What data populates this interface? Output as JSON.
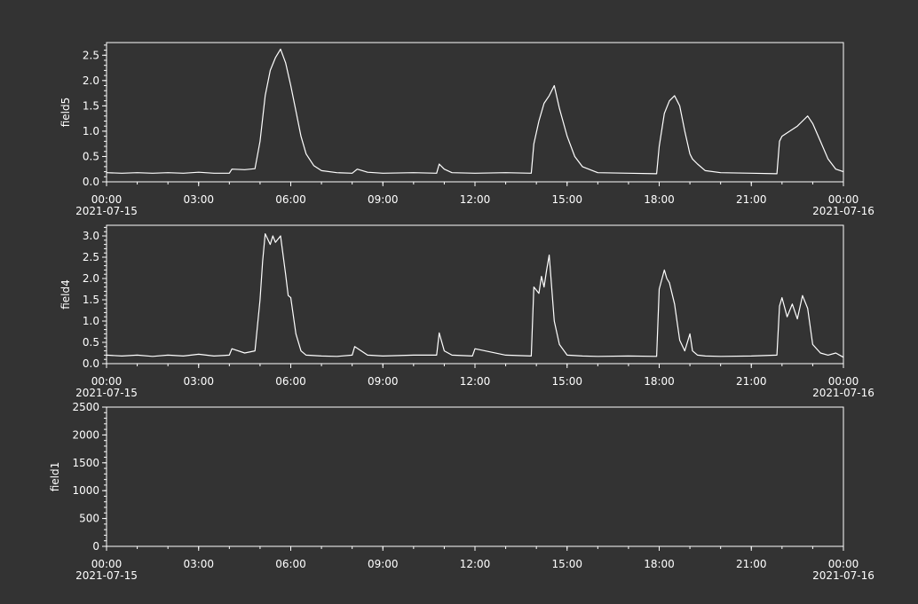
{
  "colors": {
    "background": "#333333",
    "plot_background": "#333333",
    "axes": "#ffffff",
    "line": "#ffffff",
    "text": "#ffffff"
  },
  "chart_data": [
    {
      "type": "line",
      "ylabel": "field5",
      "xlabel": "",
      "x_range": [
        "2021-07-15 00:00",
        "2021-07-16 00:00"
      ],
      "ylim": [
        0,
        2.75
      ],
      "y_ticks": [
        "0.0",
        "0.5",
        "1.0",
        "1.5",
        "2.0",
        "2.5"
      ],
      "y_tick_values": [
        0,
        0.5,
        1.0,
        1.5,
        2.0,
        2.5
      ],
      "x_tick_labels": [
        "00:00",
        "03:00",
        "06:00",
        "09:00",
        "12:00",
        "15:00",
        "18:00",
        "21:00",
        "00:00"
      ],
      "x_date_labels": [
        "2021-07-15",
        "2021-07-16"
      ],
      "grid": false,
      "series": [
        {
          "x": [
            "00:00",
            "00:30",
            "01:00",
            "01:30",
            "02:00",
            "02:30",
            "03:00",
            "03:30",
            "04:00",
            "04:05",
            "04:30",
            "04:50",
            "05:00",
            "05:10",
            "05:20",
            "05:30",
            "05:40",
            "05:50",
            "06:00",
            "06:10",
            "06:20",
            "06:30",
            "06:45",
            "07:00",
            "07:30",
            "08:00",
            "08:10",
            "08:30",
            "09:00",
            "10:00",
            "10:45",
            "10:50",
            "11:00",
            "11:15",
            "12:00",
            "13:00",
            "13:50",
            "13:55",
            "14:05",
            "14:15",
            "14:25",
            "14:35",
            "14:45",
            "15:00",
            "15:15",
            "15:30",
            "16:00",
            "17:00",
            "17:55",
            "18:00",
            "18:10",
            "18:20",
            "18:30",
            "18:40",
            "18:50",
            "19:00",
            "19:05",
            "19:15",
            "19:30",
            "20:00",
            "21:00",
            "21:50",
            "21:55",
            "22:00",
            "22:15",
            "22:30",
            "22:40",
            "22:50",
            "23:00",
            "23:15",
            "23:30",
            "23:45",
            "24:00"
          ],
          "y": [
            0.18,
            0.17,
            0.18,
            0.17,
            0.18,
            0.17,
            0.19,
            0.17,
            0.17,
            0.25,
            0.24,
            0.26,
            0.8,
            1.7,
            2.2,
            2.45,
            2.62,
            2.35,
            1.9,
            1.4,
            0.9,
            0.55,
            0.32,
            0.22,
            0.18,
            0.17,
            0.25,
            0.19,
            0.17,
            0.18,
            0.17,
            0.35,
            0.25,
            0.18,
            0.17,
            0.18,
            0.17,
            0.75,
            1.2,
            1.55,
            1.7,
            1.9,
            1.45,
            0.9,
            0.5,
            0.3,
            0.18,
            0.17,
            0.16,
            0.7,
            1.35,
            1.6,
            1.7,
            1.5,
            1.0,
            0.55,
            0.45,
            0.35,
            0.22,
            0.18,
            0.17,
            0.16,
            0.8,
            0.9,
            1.0,
            1.1,
            1.2,
            1.3,
            1.15,
            0.8,
            0.45,
            0.25,
            0.2
          ]
        }
      ]
    },
    {
      "type": "line",
      "ylabel": "field4",
      "xlabel": "",
      "x_range": [
        "2021-07-15 00:00",
        "2021-07-16 00:00"
      ],
      "ylim": [
        0,
        3.25
      ],
      "y_ticks": [
        "0.0",
        "0.5",
        "1.0",
        "1.5",
        "2.0",
        "2.5",
        "3.0"
      ],
      "y_tick_values": [
        0,
        0.5,
        1.0,
        1.5,
        2.0,
        2.5,
        3.0
      ],
      "x_tick_labels": [
        "00:00",
        "03:00",
        "06:00",
        "09:00",
        "12:00",
        "15:00",
        "18:00",
        "21:00",
        "00:00"
      ],
      "x_date_labels": [
        "2021-07-15",
        "2021-07-16"
      ],
      "grid": false,
      "series": [
        {
          "x": [
            "00:00",
            "00:30",
            "01:00",
            "01:30",
            "02:00",
            "02:30",
            "03:00",
            "03:30",
            "04:00",
            "04:05",
            "04:30",
            "04:50",
            "05:00",
            "05:05",
            "05:10",
            "05:20",
            "05:25",
            "05:30",
            "05:40",
            "05:50",
            "05:55",
            "06:00",
            "06:10",
            "06:20",
            "06:30",
            "07:00",
            "07:30",
            "08:00",
            "08:05",
            "08:30",
            "09:00",
            "10:00",
            "10:45",
            "10:50",
            "11:00",
            "11:15",
            "11:55",
            "12:00",
            "13:00",
            "13:50",
            "13:55",
            "14:05",
            "14:10",
            "14:15",
            "14:20",
            "14:25",
            "14:35",
            "14:45",
            "15:00",
            "15:30",
            "16:00",
            "17:00",
            "17:55",
            "18:00",
            "18:10",
            "18:15",
            "18:20",
            "18:30",
            "18:40",
            "18:50",
            "19:00",
            "19:05",
            "19:15",
            "19:30",
            "20:00",
            "21:00",
            "21:50",
            "21:55",
            "22:00",
            "22:10",
            "22:20",
            "22:30",
            "22:40",
            "22:50",
            "23:00",
            "23:15",
            "23:30",
            "23:45",
            "24:00"
          ],
          "y": [
            0.2,
            0.18,
            0.2,
            0.17,
            0.2,
            0.18,
            0.22,
            0.18,
            0.2,
            0.35,
            0.25,
            0.3,
            1.5,
            2.4,
            3.05,
            2.8,
            3.0,
            2.85,
            3.0,
            2.1,
            1.6,
            1.55,
            0.7,
            0.3,
            0.2,
            0.18,
            0.17,
            0.2,
            0.4,
            0.2,
            0.18,
            0.2,
            0.2,
            0.72,
            0.3,
            0.2,
            0.18,
            0.35,
            0.2,
            0.18,
            1.8,
            1.65,
            2.05,
            1.8,
            2.2,
            2.55,
            1.0,
            0.45,
            0.2,
            0.18,
            0.17,
            0.18,
            0.17,
            1.75,
            2.2,
            2.0,
            1.9,
            1.4,
            0.55,
            0.3,
            0.7,
            0.3,
            0.2,
            0.18,
            0.17,
            0.18,
            0.2,
            1.35,
            1.55,
            1.1,
            1.4,
            1.05,
            1.6,
            1.3,
            0.45,
            0.25,
            0.2,
            0.25,
            0.15
          ]
        }
      ]
    },
    {
      "type": "line",
      "ylabel": "field1",
      "xlabel": "",
      "x_range": [
        "2021-07-15 00:00",
        "2021-07-16 00:00"
      ],
      "ylim": [
        0,
        2500
      ],
      "y_ticks": [
        "0",
        "500",
        "1000",
        "1500",
        "2000",
        "2500"
      ],
      "y_tick_values": [
        0,
        500,
        1000,
        1500,
        2000,
        2500
      ],
      "x_tick_labels": [
        "00:00",
        "03:00",
        "06:00",
        "09:00",
        "12:00",
        "15:00",
        "18:00",
        "21:00",
        "00:00"
      ],
      "x_date_labels": [
        "2021-07-15",
        "2021-07-16"
      ],
      "grid": false,
      "series": []
    }
  ]
}
